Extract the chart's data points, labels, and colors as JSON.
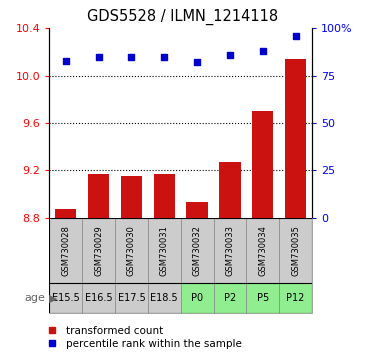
{
  "title": "GDS5528 / ILMN_1214118",
  "samples": [
    "GSM730028",
    "GSM730029",
    "GSM730030",
    "GSM730031",
    "GSM730032",
    "GSM730033",
    "GSM730034",
    "GSM730035"
  ],
  "ages": [
    "E15.5",
    "E16.5",
    "E17.5",
    "E18.5",
    "P0",
    "P2",
    "P5",
    "P12"
  ],
  "bar_values": [
    8.87,
    9.17,
    9.15,
    9.17,
    8.93,
    9.27,
    9.7,
    10.14
  ],
  "percentile_values": [
    83,
    85,
    85,
    85,
    82,
    86,
    88,
    96
  ],
  "bar_color": "#cc1111",
  "dot_color": "#0000cc",
  "ylim_left": [
    8.8,
    10.4
  ],
  "ylim_right": [
    0,
    100
  ],
  "yticks_left": [
    8.8,
    9.2,
    9.6,
    10.0,
    10.4
  ],
  "yticks_right": [
    0,
    25,
    50,
    75,
    100
  ],
  "age_colors_e": "#cccccc",
  "age_colors_p": "#90ee90",
  "legend_bar_label": "transformed count",
  "legend_dot_label": "percentile rank within the sample",
  "age_label": "age",
  "grid_lines": [
    9.2,
    9.6,
    10.0
  ],
  "n_embryo": 4,
  "n_postnatal": 4
}
